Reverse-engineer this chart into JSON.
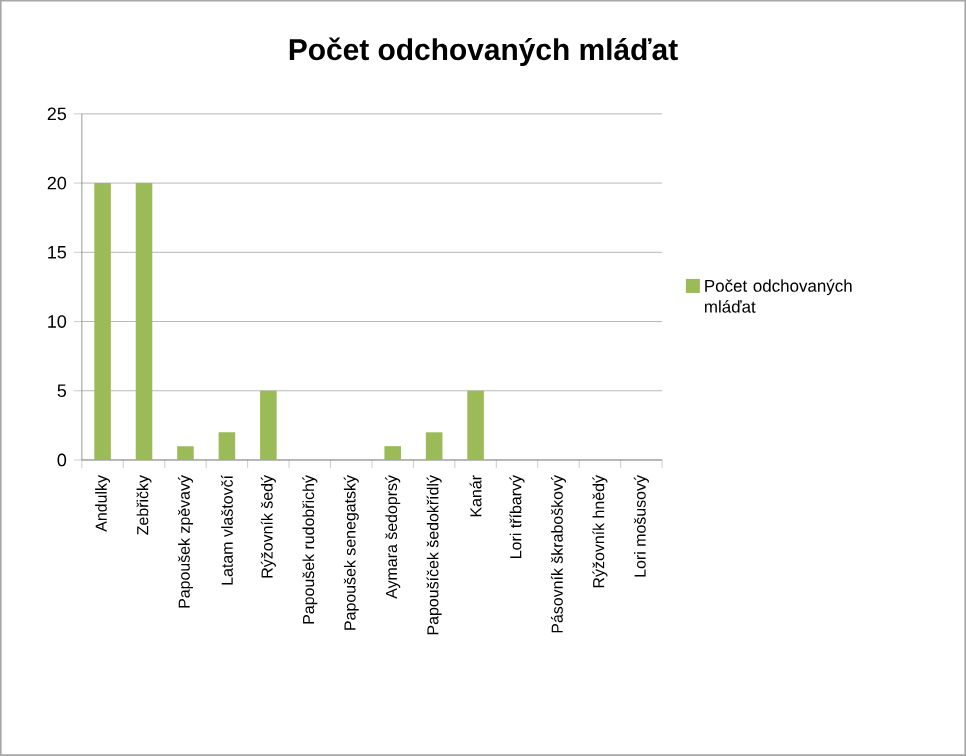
{
  "chart_data": {
    "type": "bar",
    "title": "Počet odchovaných mláďat",
    "categories": [
      "Andulky",
      "Zebřičky",
      "Papoušek zpěvavý",
      "Latam vlaštovčí",
      "Rýžovník šedý",
      "Papoušek rudobřichý",
      "Papoušek senegatský",
      "Aymara šedoprsý",
      "Papoušíček šedokřídlý",
      "Kanár",
      "Lori tříbarvý",
      "Pásovník škraboškový",
      "Rýžovník hnědý",
      "Lori mošusový"
    ],
    "series": [
      {
        "name": "Počet odchovaných mláďat",
        "color": "#9bbb59",
        "values": [
          20,
          20,
          1,
          2,
          5,
          0,
          0,
          1,
          2,
          5,
          0,
          0,
          0,
          0
        ]
      }
    ],
    "ylim": [
      0,
      25
    ],
    "yticks": [
      0,
      5,
      10,
      15,
      20,
      25
    ],
    "grid": "y",
    "legend": "right"
  }
}
